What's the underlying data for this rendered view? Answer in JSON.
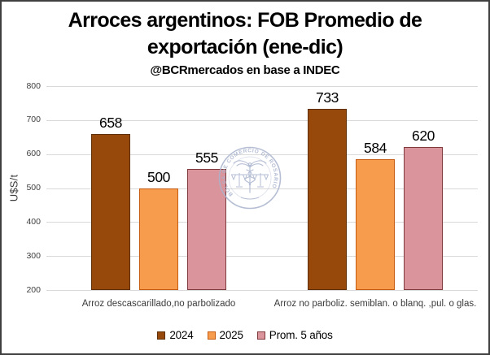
{
  "frame": {
    "border_color": "#3f3f3f",
    "background": "#ffffff"
  },
  "header": {
    "title": "Arroces argentinos: FOB Promedio de exportación (ene-dic)",
    "subtitle": "@BCRmercados en base a INDEC"
  },
  "watermark": {
    "ring_text": "BOLSA DE COMERCIO DE ROSARIO",
    "color": "#a9b3cd"
  },
  "chart_data": {
    "type": "bar",
    "title": "Arroces argentinos: FOB Promedio de exportación (ene-dic)",
    "subtitle": "@BCRmercados en base a INDEC",
    "xlabel": "",
    "ylabel": "U$S/t",
    "ylim": [
      200,
      800
    ],
    "ytick_step": 100,
    "grid": true,
    "gridline_color": "#d9d9d9",
    "data_labels": true,
    "legend_position": "bottom",
    "categories": [
      "Arroz descascarillado,no parbolizado",
      "Arroz no parboliz. semiblan. o blanq. ,pul. o glas."
    ],
    "series": [
      {
        "name": "2024",
        "values": [
          658,
          733
        ],
        "fill": "#96490B",
        "border": "#5E2F06"
      },
      {
        "name": "2025",
        "values": [
          500,
          584
        ],
        "fill": "#F79B4D",
        "border": "#C55A11"
      },
      {
        "name": "Prom. 5 años",
        "values": [
          555,
          620
        ],
        "fill": "#D9949C",
        "border": "#7E3A3D"
      }
    ]
  }
}
